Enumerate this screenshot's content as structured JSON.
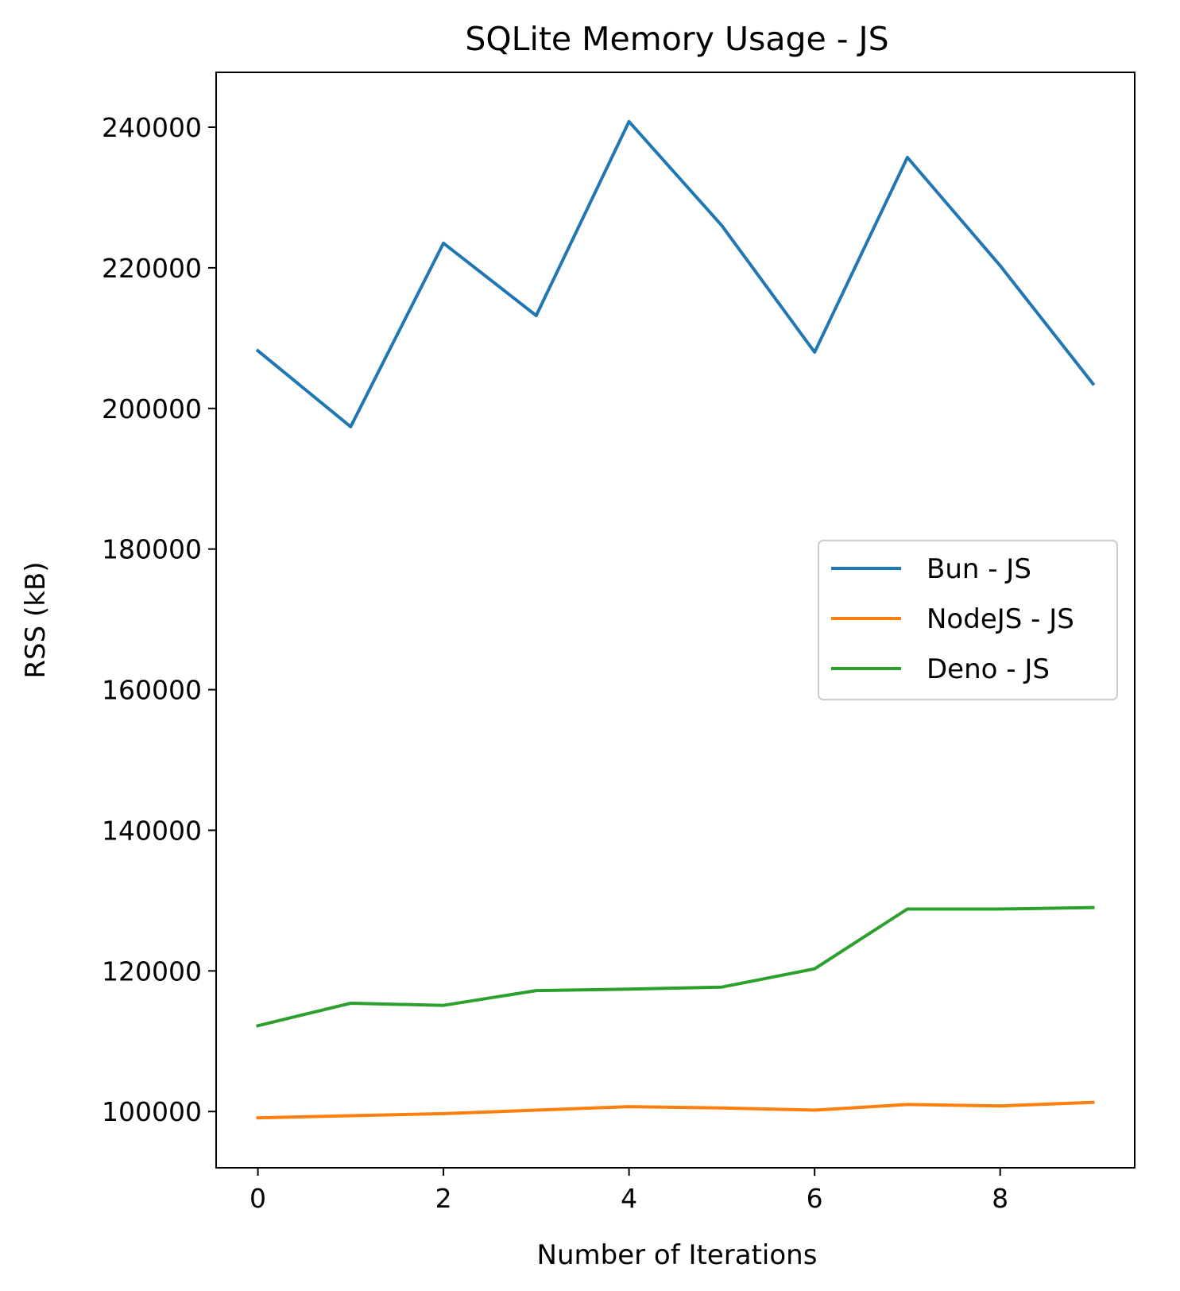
{
  "chart_data": {
    "type": "line",
    "title": "SQLite Memory Usage - JS",
    "xlabel": "Number of Iterations",
    "ylabel": "RSS (kB)",
    "xlim": [
      -0.45,
      9.45
    ],
    "ylim": [
      92000,
      247800
    ],
    "xticks": [
      0,
      2,
      4,
      6,
      8
    ],
    "yticks": [
      100000,
      120000,
      140000,
      160000,
      180000,
      200000,
      220000,
      240000
    ],
    "grid": false,
    "legend_position": "center-right",
    "x": [
      0,
      1,
      2,
      3,
      4,
      5,
      6,
      7,
      8,
      9
    ],
    "series": [
      {
        "name": "Bun - JS",
        "color": "#1f77b4",
        "values": [
          208200,
          197400,
          223500,
          213200,
          240800,
          226000,
          208000,
          235700,
          220300,
          203500
        ]
      },
      {
        "name": "NodeJS - JS",
        "color": "#ff7f0e",
        "values": [
          99100,
          99400,
          99700,
          100200,
          100700,
          100500,
          100200,
          101000,
          100800,
          101300
        ]
      },
      {
        "name": "Deno - JS",
        "color": "#2ca02c",
        "values": [
          112200,
          115400,
          115100,
          117200,
          117400,
          117700,
          120300,
          128800,
          128800,
          129000
        ]
      }
    ]
  }
}
